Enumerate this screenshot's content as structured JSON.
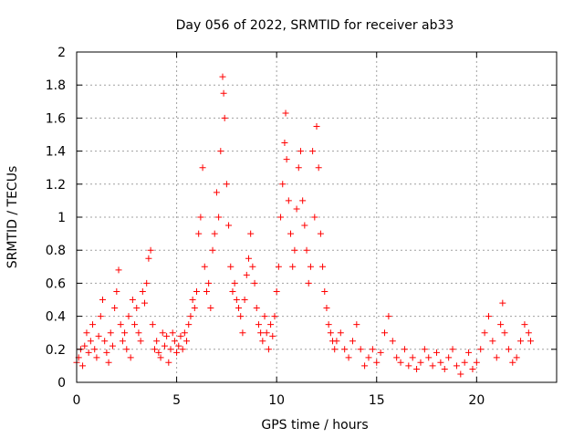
{
  "chart_data": {
    "type": "scatter",
    "title": "Day 056 of 2022, SRMTID for receiver ab33",
    "xlabel": "GPS time / hours",
    "ylabel": "SRMTID / TECUs",
    "xlim": [
      0,
      24
    ],
    "ylim": [
      0,
      2
    ],
    "grid": true,
    "marker": "+",
    "series_color": "#ff0000",
    "x_ticks": [
      {
        "value": 0,
        "label": "0"
      },
      {
        "value": 5,
        "label": "5"
      },
      {
        "value": 10,
        "label": "10"
      },
      {
        "value": 15,
        "label": "15"
      },
      {
        "value": 20,
        "label": "20"
      }
    ],
    "y_ticks": [
      {
        "value": 0,
        "label": "0"
      },
      {
        "value": 0.2,
        "label": "0.2"
      },
      {
        "value": 0.4,
        "label": "0.4"
      },
      {
        "value": 0.6,
        "label": "0.6"
      },
      {
        "value": 0.8,
        "label": "0.8"
      },
      {
        "value": 1.0,
        "label": "1"
      },
      {
        "value": 1.2,
        "label": "1.2"
      },
      {
        "value": 1.4,
        "label": "1.4"
      },
      {
        "value": 1.6,
        "label": "1.6"
      },
      {
        "value": 1.8,
        "label": "1.8"
      },
      {
        "value": 2.0,
        "label": "2"
      }
    ],
    "series": [
      {
        "name": "SRMTID",
        "points": [
          [
            0.0,
            0.12
          ],
          [
            0.1,
            0.15
          ],
          [
            0.2,
            0.2
          ],
          [
            0.3,
            0.1
          ],
          [
            0.4,
            0.22
          ],
          [
            0.5,
            0.3
          ],
          [
            0.6,
            0.18
          ],
          [
            0.7,
            0.25
          ],
          [
            0.8,
            0.35
          ],
          [
            0.9,
            0.2
          ],
          [
            1.0,
            0.15
          ],
          [
            1.1,
            0.28
          ],
          [
            1.2,
            0.4
          ],
          [
            1.3,
            0.5
          ],
          [
            1.4,
            0.25
          ],
          [
            1.5,
            0.18
          ],
          [
            1.6,
            0.12
          ],
          [
            1.7,
            0.3
          ],
          [
            1.8,
            0.22
          ],
          [
            1.9,
            0.45
          ],
          [
            2.0,
            0.55
          ],
          [
            2.1,
            0.68
          ],
          [
            2.2,
            0.35
          ],
          [
            2.3,
            0.25
          ],
          [
            2.4,
            0.3
          ],
          [
            2.5,
            0.2
          ],
          [
            2.6,
            0.4
          ],
          [
            2.7,
            0.15
          ],
          [
            2.8,
            0.5
          ],
          [
            2.9,
            0.35
          ],
          [
            3.0,
            0.45
          ],
          [
            3.1,
            0.3
          ],
          [
            3.2,
            0.25
          ],
          [
            3.3,
            0.55
          ],
          [
            3.4,
            0.48
          ],
          [
            3.5,
            0.6
          ],
          [
            3.6,
            0.75
          ],
          [
            3.7,
            0.8
          ],
          [
            3.8,
            0.35
          ],
          [
            3.9,
            0.2
          ],
          [
            4.0,
            0.25
          ],
          [
            4.1,
            0.18
          ],
          [
            4.2,
            0.15
          ],
          [
            4.3,
            0.3
          ],
          [
            4.4,
            0.22
          ],
          [
            4.5,
            0.28
          ],
          [
            4.6,
            0.12
          ],
          [
            4.7,
            0.2
          ],
          [
            4.8,
            0.3
          ],
          [
            4.9,
            0.25
          ],
          [
            5.0,
            0.18
          ],
          [
            5.1,
            0.22
          ],
          [
            5.2,
            0.28
          ],
          [
            5.3,
            0.2
          ],
          [
            5.4,
            0.3
          ],
          [
            5.5,
            0.25
          ],
          [
            5.6,
            0.35
          ],
          [
            5.7,
            0.4
          ],
          [
            5.8,
            0.5
          ],
          [
            5.9,
            0.45
          ],
          [
            6.0,
            0.55
          ],
          [
            6.1,
            0.9
          ],
          [
            6.2,
            1.0
          ],
          [
            6.3,
            1.3
          ],
          [
            6.4,
            0.7
          ],
          [
            6.5,
            0.55
          ],
          [
            6.6,
            0.6
          ],
          [
            6.7,
            0.45
          ],
          [
            6.8,
            0.8
          ],
          [
            6.9,
            0.9
          ],
          [
            7.0,
            1.15
          ],
          [
            7.1,
            1.0
          ],
          [
            7.2,
            1.4
          ],
          [
            7.3,
            1.85
          ],
          [
            7.35,
            1.75
          ],
          [
            7.4,
            1.6
          ],
          [
            7.5,
            1.2
          ],
          [
            7.6,
            0.95
          ],
          [
            7.7,
            0.7
          ],
          [
            7.8,
            0.55
          ],
          [
            7.9,
            0.6
          ],
          [
            8.0,
            0.5
          ],
          [
            8.1,
            0.45
          ],
          [
            8.2,
            0.4
          ],
          [
            8.3,
            0.3
          ],
          [
            8.4,
            0.5
          ],
          [
            8.5,
            0.65
          ],
          [
            8.6,
            0.75
          ],
          [
            8.7,
            0.9
          ],
          [
            8.8,
            0.7
          ],
          [
            8.9,
            0.6
          ],
          [
            9.0,
            0.45
          ],
          [
            9.1,
            0.35
          ],
          [
            9.2,
            0.3
          ],
          [
            9.3,
            0.25
          ],
          [
            9.4,
            0.4
          ],
          [
            9.5,
            0.3
          ],
          [
            9.6,
            0.2
          ],
          [
            9.7,
            0.35
          ],
          [
            9.8,
            0.28
          ],
          [
            9.9,
            0.4
          ],
          [
            10.0,
            0.55
          ],
          [
            10.1,
            0.7
          ],
          [
            10.2,
            1.0
          ],
          [
            10.3,
            1.2
          ],
          [
            10.4,
            1.45
          ],
          [
            10.45,
            1.63
          ],
          [
            10.5,
            1.35
          ],
          [
            10.6,
            1.1
          ],
          [
            10.7,
            0.9
          ],
          [
            10.8,
            0.7
          ],
          [
            10.9,
            0.8
          ],
          [
            11.0,
            1.05
          ],
          [
            11.1,
            1.3
          ],
          [
            11.2,
            1.4
          ],
          [
            11.3,
            1.1
          ],
          [
            11.4,
            0.95
          ],
          [
            11.5,
            0.8
          ],
          [
            11.6,
            0.6
          ],
          [
            11.7,
            0.7
          ],
          [
            11.8,
            1.4
          ],
          [
            11.9,
            1.0
          ],
          [
            12.0,
            1.55
          ],
          [
            12.1,
            1.3
          ],
          [
            12.2,
            0.9
          ],
          [
            12.3,
            0.7
          ],
          [
            12.4,
            0.55
          ],
          [
            12.5,
            0.45
          ],
          [
            12.6,
            0.35
          ],
          [
            12.7,
            0.3
          ],
          [
            12.8,
            0.25
          ],
          [
            12.9,
            0.2
          ],
          [
            13.0,
            0.25
          ],
          [
            13.2,
            0.3
          ],
          [
            13.4,
            0.2
          ],
          [
            13.6,
            0.15
          ],
          [
            13.8,
            0.25
          ],
          [
            14.0,
            0.35
          ],
          [
            14.2,
            0.2
          ],
          [
            14.4,
            0.1
          ],
          [
            14.6,
            0.15
          ],
          [
            14.8,
            0.2
          ],
          [
            15.0,
            0.12
          ],
          [
            15.2,
            0.18
          ],
          [
            15.4,
            0.3
          ],
          [
            15.6,
            0.4
          ],
          [
            15.8,
            0.25
          ],
          [
            16.0,
            0.15
          ],
          [
            16.2,
            0.12
          ],
          [
            16.4,
            0.2
          ],
          [
            16.6,
            0.1
          ],
          [
            16.8,
            0.15
          ],
          [
            17.0,
            0.08
          ],
          [
            17.2,
            0.12
          ],
          [
            17.4,
            0.2
          ],
          [
            17.6,
            0.15
          ],
          [
            17.8,
            0.1
          ],
          [
            18.0,
            0.18
          ],
          [
            18.2,
            0.12
          ],
          [
            18.4,
            0.08
          ],
          [
            18.6,
            0.15
          ],
          [
            18.8,
            0.2
          ],
          [
            19.0,
            0.1
          ],
          [
            19.2,
            0.05
          ],
          [
            19.4,
            0.12
          ],
          [
            19.6,
            0.18
          ],
          [
            19.8,
            0.08
          ],
          [
            20.0,
            0.12
          ],
          [
            20.2,
            0.2
          ],
          [
            20.4,
            0.3
          ],
          [
            20.6,
            0.4
          ],
          [
            20.8,
            0.25
          ],
          [
            21.0,
            0.15
          ],
          [
            21.2,
            0.35
          ],
          [
            21.3,
            0.48
          ],
          [
            21.4,
            0.3
          ],
          [
            21.6,
            0.2
          ],
          [
            21.8,
            0.12
          ],
          [
            22.0,
            0.15
          ],
          [
            22.2,
            0.25
          ],
          [
            22.4,
            0.35
          ],
          [
            22.6,
            0.3
          ],
          [
            22.7,
            0.25
          ]
        ]
      }
    ]
  }
}
